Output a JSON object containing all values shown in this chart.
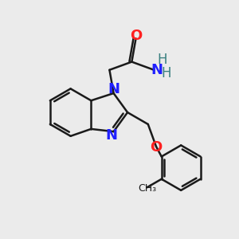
{
  "background_color": "#ebebeb",
  "bond_color": "#1a1a1a",
  "N_color": "#2020ff",
  "O_color": "#ff2020",
  "H_color": "#3a8080",
  "line_width": 1.8,
  "font_size": 13,
  "fig_size": [
    3.0,
    3.0
  ],
  "dpi": 100,
  "xlim": [
    0,
    10
  ],
  "ylim": [
    0,
    10
  ]
}
